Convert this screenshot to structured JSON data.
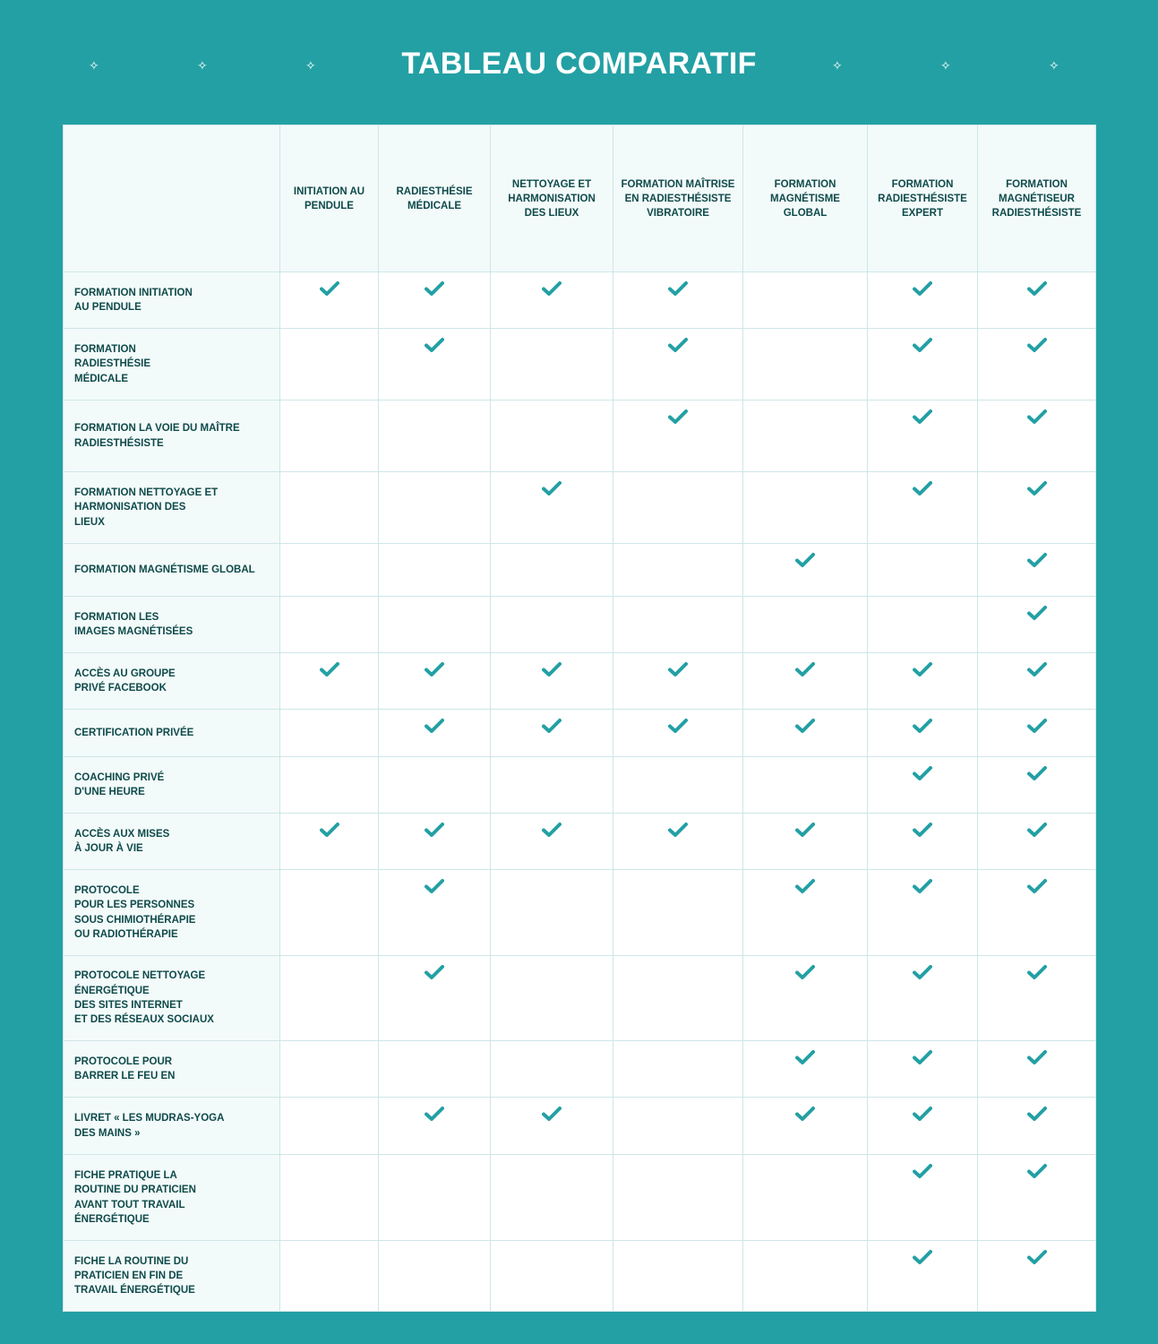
{
  "title": "TABLEAU COMPARATIF",
  "colors": {
    "background": "#23a0a4",
    "check": "#23a0a4",
    "text": "#0f4a4a",
    "header_bg": "#f3fafa"
  },
  "icons": {
    "check": "check-icon",
    "sparkle": "sparkle-icon"
  },
  "sparkle_glyph": "✧",
  "columns": [
    "INITIATION AU PENDULE",
    "RADIESTHÉSIE MÉDICALE",
    "NETTOYAGE ET HARMONISATION DES LIEUX",
    "FORMATION MAÎTRISE EN RADIESTHÉSISTE VIBRATOIRE",
    "FORMATION MAGNÉTISME GLOBAL",
    "FORMATION RADIESTHÉSISTE EXPERT",
    "FORMATION MAGNÉTISEUR RADIESTHÉSISTE"
  ],
  "rows": [
    {
      "label": "FORMATION INITIATION\nAU PENDULE",
      "checks": [
        true,
        true,
        true,
        true,
        false,
        true,
        true
      ]
    },
    {
      "label": "FORMATION\nRADIESTHÉSIE\nMÉDICALE",
      "checks": [
        false,
        true,
        false,
        true,
        false,
        true,
        true
      ]
    },
    {
      "label": "FORMATION LA VOIE DU MAÎTRE\nRADIESTHÉSISTE",
      "checks": [
        false,
        false,
        false,
        true,
        false,
        true,
        true
      ]
    },
    {
      "label": "FORMATION NETTOYAGE ET\nHARMONISATION DES\nLIEUX",
      "checks": [
        false,
        false,
        true,
        false,
        false,
        true,
        true
      ]
    },
    {
      "label": "FORMATION MAGNÉTISME GLOBAL",
      "checks": [
        false,
        false,
        false,
        false,
        true,
        false,
        true
      ]
    },
    {
      "label": "FORMATION LES\nIMAGES MAGNÉTISÉES",
      "checks": [
        false,
        false,
        false,
        false,
        false,
        false,
        true
      ]
    },
    {
      "label": "ACCÈS AU GROUPE\nPRIVÉ FACEBOOK",
      "checks": [
        true,
        true,
        true,
        true,
        true,
        true,
        true
      ]
    },
    {
      "label": "CERTIFICATION PRIVÉE",
      "checks": [
        false,
        true,
        true,
        true,
        true,
        true,
        true
      ]
    },
    {
      "label": "COACHING PRIVÉ\nD'UNE HEURE",
      "checks": [
        false,
        false,
        false,
        false,
        false,
        true,
        true
      ]
    },
    {
      "label": "ACCÈS AUX MISES\nÀ JOUR À VIE",
      "checks": [
        true,
        true,
        true,
        true,
        true,
        true,
        true
      ]
    },
    {
      "label": "PROTOCOLE\nPOUR LES PERSONNES\nSOUS CHIMIOTHÉRAPIE\nOU RADIOTHÉRAPIE",
      "checks": [
        false,
        true,
        false,
        false,
        true,
        true,
        true
      ]
    },
    {
      "label": "PROTOCOLE NETTOYAGE\nÉNERGÉTIQUE\nDES SITES INTERNET\nET DES RÉSEAUX SOCIAUX",
      "checks": [
        false,
        true,
        false,
        false,
        true,
        true,
        true
      ]
    },
    {
      "label": "PROTOCOLE POUR\nBARRER LE FEU EN",
      "checks": [
        false,
        false,
        false,
        false,
        true,
        true,
        true
      ]
    },
    {
      "label": "LIVRET « LES MUDRAS-YOGA\nDES MAINS »",
      "checks": [
        false,
        true,
        true,
        false,
        true,
        true,
        true
      ]
    },
    {
      "label": "FICHE PRATIQUE LA\nROUTINE DU PRATICIEN\nAVANT TOUT TRAVAIL\nÉNERGÉTIQUE",
      "checks": [
        false,
        false,
        false,
        false,
        false,
        true,
        true
      ]
    },
    {
      "label": "FICHE LA ROUTINE DU\nPRATICIEN EN FIN DE\nTRAVAIL ÉNERGÉTIQUE",
      "checks": [
        false,
        false,
        false,
        false,
        false,
        true,
        true
      ]
    }
  ]
}
